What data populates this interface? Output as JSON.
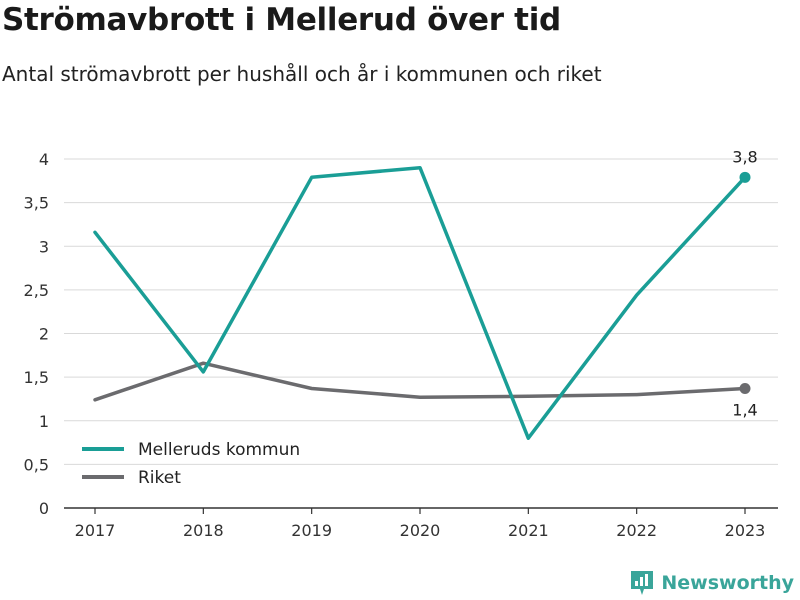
{
  "header": {
    "title": "Strömavbrott i Mellerud över tid",
    "subtitle": "Antal strömavbrott per hushåll och år i kommunen och riket"
  },
  "brand": {
    "name": "Newsworthy",
    "icon": "newsworthy-logo-icon",
    "color": "#3aa59a"
  },
  "chart_data": {
    "type": "line",
    "title": "Strömavbrott i Mellerud över tid",
    "subtitle": "Antal strömavbrott per hushåll och år i kommunen och riket",
    "x": [
      "2017",
      "2018",
      "2019",
      "2020",
      "2021",
      "2022",
      "2023"
    ],
    "ylim": [
      0,
      4
    ],
    "yticks": [
      0,
      0.5,
      1,
      1.5,
      2,
      2.5,
      3,
      3.5,
      4
    ],
    "ytick_labels": [
      "0",
      "0,5",
      "1",
      "1,5",
      "2",
      "2,5",
      "3",
      "3,5",
      "4"
    ],
    "grid": true,
    "legend_position": "bottom-left",
    "series": [
      {
        "name": "Melleruds kommun",
        "color": "#1a9e96",
        "values": [
          3.16,
          1.56,
          3.79,
          3.9,
          0.8,
          2.44,
          3.79
        ],
        "end_label": "3,8"
      },
      {
        "name": "Riket",
        "color": "#6b6b6e",
        "values": [
          1.24,
          1.66,
          1.37,
          1.27,
          1.28,
          1.3,
          1.37
        ],
        "end_label": "1,4"
      }
    ]
  }
}
